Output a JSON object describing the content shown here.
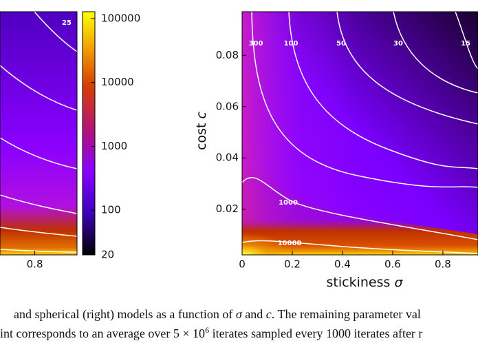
{
  "figure": {
    "left_panel": {
      "xlim": [
        0.66,
        0.97
      ],
      "xticks": [
        0.8
      ],
      "contour_labels": [
        25
      ]
    },
    "colorbar": {
      "scale": "log",
      "lim": [
        20,
        128000
      ],
      "ticks": [
        20,
        100,
        1000,
        10000,
        100000
      ]
    },
    "right_panel": {
      "xlabel": {
        "text": "stickiness",
        "symbol": "σ"
      },
      "ylabel": {
        "text": "cost",
        "symbol": "c"
      },
      "xlim": [
        0,
        0.94
      ],
      "ylim": [
        0.0022,
        0.097
      ],
      "xticks": [
        0,
        0.2,
        0.4,
        0.6,
        0.8
      ],
      "yticks": [
        0.02,
        0.04,
        0.06,
        0.08
      ],
      "contour_labels": [
        300,
        100,
        50,
        30,
        15,
        1000,
        10000
      ]
    }
  },
  "caption": {
    "lines": [
      [
        {
          "text": "and spherical (right) models as a function of "
        },
        {
          "text": "σ",
          "style": "italic"
        },
        {
          "text": " and "
        },
        {
          "text": "c",
          "style": "italic"
        },
        {
          "text": ". The remaining parameter val"
        }
      ],
      [
        {
          "text": "int corresponds to an average over 5 × 10"
        },
        {
          "text": "6",
          "style": "superscript"
        },
        {
          "text": " iterates sampled every 1000 iterates after r"
        }
      ]
    ]
  }
}
